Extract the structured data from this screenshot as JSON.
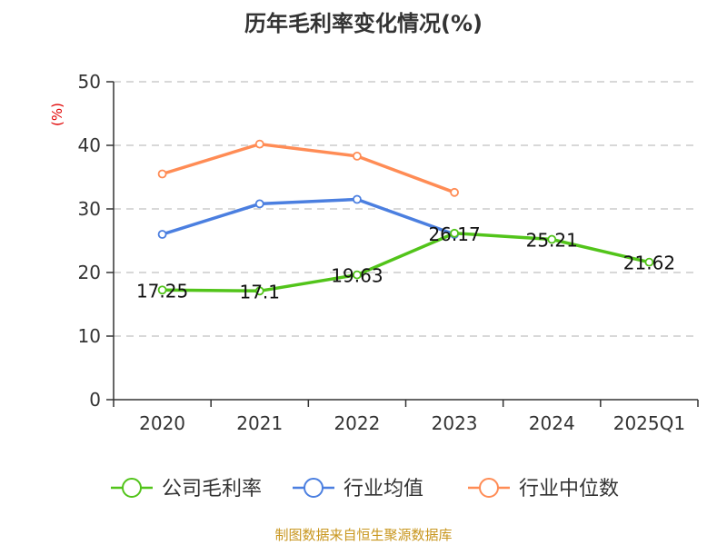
{
  "chart_data": {
    "type": "line",
    "title": "历年毛利率变化情况(%)",
    "ylabel": "(%)",
    "categories": [
      "2020",
      "2021",
      "2022",
      "2023",
      "2024",
      "2025Q1"
    ],
    "ylim": [
      0,
      50
    ],
    "yticks": [
      0,
      10,
      20,
      30,
      40,
      50
    ],
    "grid": true,
    "legend_position": "bottom",
    "series": [
      {
        "name": "公司毛利率",
        "color": "#52c41a",
        "values": [
          17.25,
          17.1,
          19.63,
          26.17,
          25.21,
          21.62
        ],
        "labels": [
          "17.25",
          "17.1",
          "19.63",
          "26.17",
          "25.21",
          "21.62"
        ]
      },
      {
        "name": "行业均值",
        "color": "#4b7fe0",
        "values": [
          26.0,
          30.8,
          31.5,
          26.0,
          null,
          null
        ]
      },
      {
        "name": "行业中位数",
        "color": "#ff8c55",
        "values": [
          35.5,
          40.2,
          38.3,
          32.6,
          null,
          null
        ]
      }
    ]
  },
  "source": "制图数据来自恒生聚源数据库"
}
